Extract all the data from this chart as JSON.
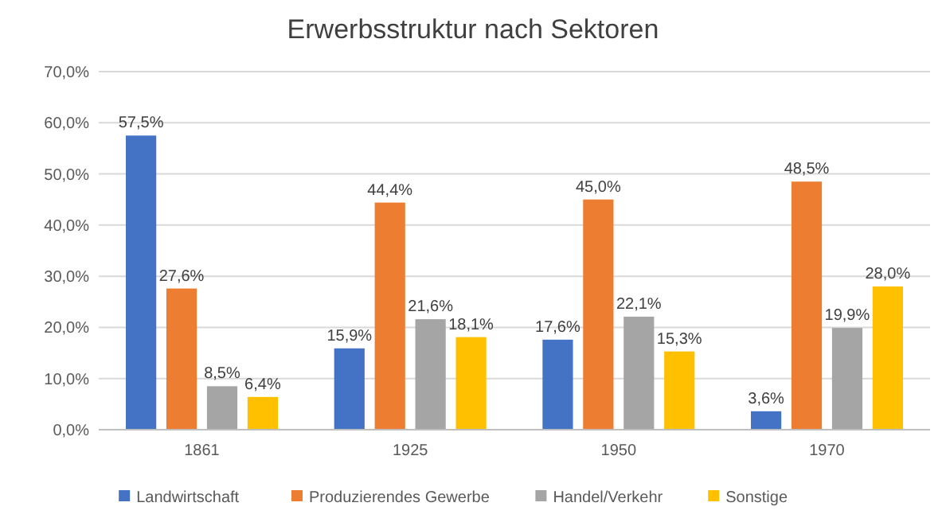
{
  "chart_data": {
    "type": "bar",
    "title": "Erwerbsstruktur nach Sektoren",
    "categories": [
      "1861",
      "1925",
      "1950",
      "1970"
    ],
    "series": [
      {
        "name": "Landwirtschaft",
        "color": "#4472c4",
        "values": [
          57.5,
          15.9,
          17.6,
          3.6
        ],
        "value_labels": [
          "57,5%",
          "15,9%",
          "17,6%",
          "3,6%"
        ]
      },
      {
        "name": "Produzierendes Gewerbe",
        "color": "#ed7d31",
        "values": [
          27.6,
          44.4,
          45.0,
          48.5
        ],
        "value_labels": [
          "27,6%",
          "44,4%",
          "45,0%",
          "48,5%"
        ]
      },
      {
        "name": "Handel/Verkehr",
        "color": "#a5a5a5",
        "values": [
          8.5,
          21.6,
          22.1,
          19.9
        ],
        "value_labels": [
          "8,5%",
          "21,6%",
          "22,1%",
          "19,9%"
        ]
      },
      {
        "name": "Sonstige",
        "color": "#ffc000",
        "values": [
          6.4,
          18.1,
          15.3,
          28.0
        ],
        "value_labels": [
          "6,4%",
          "18,1%",
          "15,3%",
          "28,0%"
        ]
      }
    ],
    "ylim": [
      0,
      70
    ],
    "yticks": [
      {
        "value": 0,
        "label": "0,0%"
      },
      {
        "value": 10,
        "label": "10,0%"
      },
      {
        "value": 20,
        "label": "20,0%"
      },
      {
        "value": 30,
        "label": "30,0%"
      },
      {
        "value": 40,
        "label": "40,0%"
      },
      {
        "value": 50,
        "label": "50,0%"
      },
      {
        "value": 60,
        "label": "60,0%"
      },
      {
        "value": 70,
        "label": "70,0%"
      }
    ],
    "grid": "y",
    "legend": "bottom"
  }
}
